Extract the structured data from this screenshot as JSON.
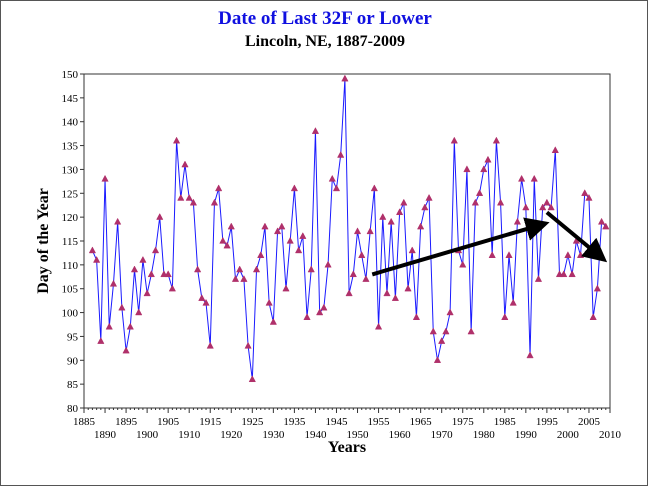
{
  "chart_data": {
    "type": "line",
    "title": "Date of Last 32F or Lower",
    "subtitle": "Lincoln, NE, 1887-2009",
    "xlabel": "Years",
    "ylabel": "Day of the Year",
    "xlim": [
      1885,
      2010
    ],
    "ylim": [
      80,
      150
    ],
    "x_ticks_top": [
      "1885",
      "1895",
      "1905",
      "1915",
      "1925",
      "1935",
      "1945",
      "1955",
      "1965",
      "1975",
      "1985",
      "1995",
      "2005"
    ],
    "x_ticks_bottom": [
      "1890",
      "1900",
      "1910",
      "1920",
      "1930",
      "1940",
      "1950",
      "1960",
      "1970",
      "1980",
      "1990",
      "2000",
      "2010"
    ],
    "y_ticks": [
      "80",
      "85",
      "90",
      "95",
      "100",
      "105",
      "110",
      "115",
      "120",
      "125",
      "130",
      "135",
      "140",
      "145",
      "150"
    ],
    "grid": false,
    "series": [
      {
        "line_color": "#1a1aff",
        "marker_color": "#b0306a",
        "points": [
          [
            1887,
            113
          ],
          [
            1888,
            111
          ],
          [
            1889,
            94
          ],
          [
            1890,
            128
          ],
          [
            1891,
            97
          ],
          [
            1892,
            106
          ],
          [
            1893,
            119
          ],
          [
            1894,
            101
          ],
          [
            1895,
            92
          ],
          [
            1896,
            97
          ],
          [
            1897,
            109
          ],
          [
            1898,
            100
          ],
          [
            1899,
            111
          ],
          [
            1900,
            104
          ],
          [
            1901,
            108
          ],
          [
            1902,
            113
          ],
          [
            1903,
            120
          ],
          [
            1904,
            108
          ],
          [
            1905,
            108
          ],
          [
            1906,
            105
          ],
          [
            1907,
            136
          ],
          [
            1908,
            124
          ],
          [
            1909,
            131
          ],
          [
            1910,
            124
          ],
          [
            1911,
            123
          ],
          [
            1912,
            109
          ],
          [
            1913,
            103
          ],
          [
            1914,
            102
          ],
          [
            1915,
            93
          ],
          [
            1916,
            123
          ],
          [
            1917,
            126
          ],
          [
            1918,
            115
          ],
          [
            1919,
            114
          ],
          [
            1920,
            118
          ],
          [
            1921,
            107
          ],
          [
            1922,
            109
          ],
          [
            1923,
            107
          ],
          [
            1924,
            93
          ],
          [
            1925,
            86
          ],
          [
            1926,
            109
          ],
          [
            1927,
            112
          ],
          [
            1928,
            118
          ],
          [
            1929,
            102
          ],
          [
            1930,
            98
          ],
          [
            1931,
            117
          ],
          [
            1932,
            118
          ],
          [
            1933,
            105
          ],
          [
            1934,
            115
          ],
          [
            1935,
            126
          ],
          [
            1936,
            113
          ],
          [
            1937,
            116
          ],
          [
            1938,
            99
          ],
          [
            1939,
            109
          ],
          [
            1940,
            138
          ],
          [
            1941,
            100
          ],
          [
            1942,
            101
          ],
          [
            1943,
            110
          ],
          [
            1944,
            128
          ],
          [
            1945,
            126
          ],
          [
            1946,
            133
          ],
          [
            1947,
            149
          ],
          [
            1948,
            104
          ],
          [
            1949,
            108
          ],
          [
            1950,
            117
          ],
          [
            1951,
            112
          ],
          [
            1952,
            107
          ],
          [
            1953,
            117
          ],
          [
            1954,
            126
          ],
          [
            1955,
            97
          ],
          [
            1956,
            120
          ],
          [
            1957,
            104
          ],
          [
            1958,
            119
          ],
          [
            1959,
            103
          ],
          [
            1960,
            121
          ],
          [
            1961,
            123
          ],
          [
            1962,
            105
          ],
          [
            1963,
            113
          ],
          [
            1964,
            99
          ],
          [
            1965,
            118
          ],
          [
            1966,
            122
          ],
          [
            1967,
            124
          ],
          [
            1968,
            96
          ],
          [
            1969,
            90
          ],
          [
            1970,
            94
          ],
          [
            1971,
            96
          ],
          [
            1972,
            100
          ],
          [
            1973,
            136
          ],
          [
            1974,
            113
          ],
          [
            1975,
            110
          ],
          [
            1976,
            130
          ],
          [
            1977,
            96
          ],
          [
            1978,
            123
          ],
          [
            1979,
            125
          ],
          [
            1980,
            130
          ],
          [
            1981,
            132
          ],
          [
            1982,
            112
          ],
          [
            1983,
            136
          ],
          [
            1984,
            123
          ],
          [
            1985,
            99
          ],
          [
            1986,
            112
          ],
          [
            1987,
            102
          ],
          [
            1988,
            119
          ],
          [
            1989,
            128
          ],
          [
            1990,
            122
          ],
          [
            1991,
            91
          ],
          [
            1992,
            128
          ],
          [
            1993,
            107
          ],
          [
            1994,
            122
          ],
          [
            1995,
            123
          ],
          [
            1996,
            122
          ],
          [
            1997,
            134
          ],
          [
            1998,
            108
          ],
          [
            1999,
            108
          ],
          [
            2000,
            112
          ],
          [
            2001,
            108
          ],
          [
            2002,
            115
          ],
          [
            2003,
            112
          ],
          [
            2004,
            125
          ],
          [
            2005,
            124
          ],
          [
            2006,
            99
          ],
          [
            2007,
            105
          ],
          [
            2008,
            119
          ],
          [
            2009,
            118
          ]
        ]
      }
    ],
    "annotations": [
      {
        "type": "arrow",
        "from": [
          1953.5,
          108
        ],
        "to": [
          1994,
          118.5
        ],
        "color": "#000000"
      },
      {
        "type": "arrow",
        "from": [
          1995,
          121
        ],
        "to": [
          2008,
          111.5
        ],
        "color": "#000000"
      }
    ]
  }
}
